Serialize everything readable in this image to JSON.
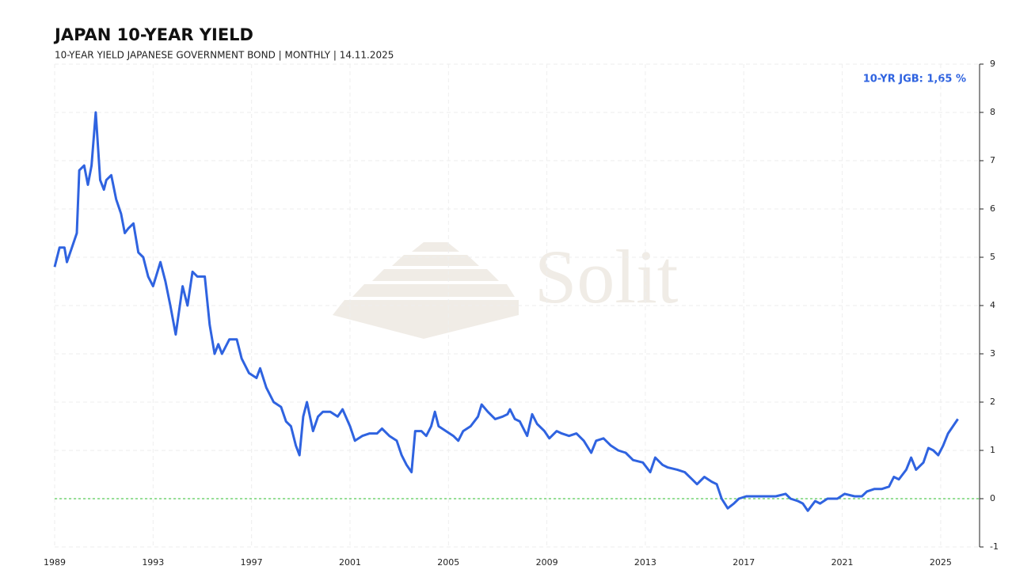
{
  "chart_data": {
    "type": "line",
    "title": "JAPAN 10-YEAR YIELD",
    "subtitle": "10-YEAR YIELD JAPANESE GOVERNMENT BOND | MONTHLY | 14.11.2025",
    "annotation": "10-YR JGB: 1,65 %",
    "watermark": "Solit",
    "x": [
      1989.0,
      1989.2,
      1989.4,
      1989.5,
      1989.7,
      1989.9,
      1990.0,
      1990.2,
      1990.35,
      1990.5,
      1990.67,
      1990.85,
      1991.0,
      1991.1,
      1991.3,
      1991.5,
      1991.7,
      1991.85,
      1992.0,
      1992.2,
      1992.4,
      1992.6,
      1992.8,
      1993.0,
      1993.3,
      1993.5,
      1993.7,
      1993.92,
      1994.2,
      1994.4,
      1994.6,
      1994.8,
      1995.1,
      1995.3,
      1995.5,
      1995.65,
      1995.8,
      1996.1,
      1996.4,
      1996.6,
      1996.9,
      1997.2,
      1997.35,
      1997.6,
      1997.9,
      1998.2,
      1998.4,
      1998.6,
      1998.8,
      1998.95,
      1999.1,
      1999.25,
      1999.5,
      1999.7,
      1999.9,
      2000.2,
      2000.5,
      2000.7,
      2001.0,
      2001.2,
      2001.5,
      2001.8,
      2002.1,
      2002.3,
      2002.6,
      2002.9,
      2003.1,
      2003.3,
      2003.5,
      2003.65,
      2003.9,
      2004.1,
      2004.3,
      2004.45,
      2004.6,
      2004.9,
      2005.2,
      2005.4,
      2005.6,
      2005.9,
      2006.2,
      2006.35,
      2006.6,
      2006.9,
      2007.2,
      2007.4,
      2007.5,
      2007.7,
      2007.9,
      2008.2,
      2008.4,
      2008.6,
      2008.9,
      2009.1,
      2009.4,
      2009.6,
      2009.9,
      2010.2,
      2010.5,
      2010.8,
      2011.0,
      2011.3,
      2011.6,
      2011.9,
      2012.2,
      2012.5,
      2012.9,
      2013.2,
      2013.4,
      2013.7,
      2013.9,
      2014.3,
      2014.6,
      2014.9,
      2015.1,
      2015.4,
      2015.7,
      2015.9,
      2016.1,
      2016.35,
      2016.6,
      2016.8,
      2017.1,
      2017.5,
      2017.9,
      2018.3,
      2018.7,
      2018.9,
      2019.2,
      2019.4,
      2019.6,
      2019.9,
      2020.1,
      2020.4,
      2020.8,
      2021.1,
      2021.5,
      2021.8,
      2022.0,
      2022.3,
      2022.6,
      2022.9,
      2023.1,
      2023.3,
      2023.6,
      2023.8,
      2024.0,
      2024.3,
      2024.5,
      2024.7,
      2024.9,
      2025.1,
      2025.3,
      2025.5,
      2025.7
    ],
    "series": [
      {
        "name": "10-YR JGB",
        "color": "#2f63e0",
        "values": [
          4.8,
          5.2,
          5.2,
          4.9,
          5.2,
          5.5,
          6.8,
          6.9,
          6.5,
          6.9,
          8.0,
          6.6,
          6.4,
          6.6,
          6.7,
          6.2,
          5.9,
          5.5,
          5.6,
          5.7,
          5.1,
          5.0,
          4.6,
          4.4,
          4.9,
          4.5,
          4.0,
          3.4,
          4.4,
          4.0,
          4.7,
          4.6,
          4.6,
          3.6,
          3.0,
          3.2,
          3.0,
          3.3,
          3.3,
          2.9,
          2.6,
          2.5,
          2.7,
          2.3,
          2.0,
          1.9,
          1.6,
          1.5,
          1.1,
          0.9,
          1.7,
          2.0,
          1.4,
          1.7,
          1.8,
          1.8,
          1.7,
          1.85,
          1.5,
          1.2,
          1.3,
          1.35,
          1.35,
          1.45,
          1.3,
          1.2,
          0.9,
          0.7,
          0.55,
          1.4,
          1.4,
          1.3,
          1.5,
          1.8,
          1.5,
          1.4,
          1.3,
          1.2,
          1.4,
          1.5,
          1.7,
          1.95,
          1.8,
          1.65,
          1.7,
          1.75,
          1.85,
          1.65,
          1.6,
          1.3,
          1.75,
          1.55,
          1.4,
          1.25,
          1.4,
          1.35,
          1.3,
          1.35,
          1.2,
          0.95,
          1.2,
          1.25,
          1.1,
          1.0,
          0.95,
          0.8,
          0.75,
          0.55,
          0.85,
          0.7,
          0.65,
          0.6,
          0.55,
          0.4,
          0.3,
          0.45,
          0.35,
          0.3,
          0.0,
          -0.2,
          -0.1,
          0.0,
          0.05,
          0.05,
          0.05,
          0.05,
          0.1,
          0.0,
          -0.05,
          -0.1,
          -0.25,
          -0.05,
          -0.1,
          0.0,
          0.0,
          0.1,
          0.05,
          0.05,
          0.15,
          0.2,
          0.2,
          0.25,
          0.45,
          0.4,
          0.6,
          0.85,
          0.6,
          0.75,
          1.05,
          1.0,
          0.9,
          1.1,
          1.35,
          1.5,
          1.65
        ]
      }
    ],
    "xlim": [
      1989,
      2026.58
    ],
    "xticks": [
      1989,
      1993,
      1997,
      2001,
      2005,
      2009,
      2013,
      2017,
      2021,
      2025
    ],
    "ylim": [
      -1,
      9
    ],
    "yticks": [
      -1,
      0,
      1,
      2,
      3,
      4,
      5,
      6,
      7,
      8,
      9
    ],
    "zero_line_color": "#2fbf2f",
    "grid": true
  }
}
